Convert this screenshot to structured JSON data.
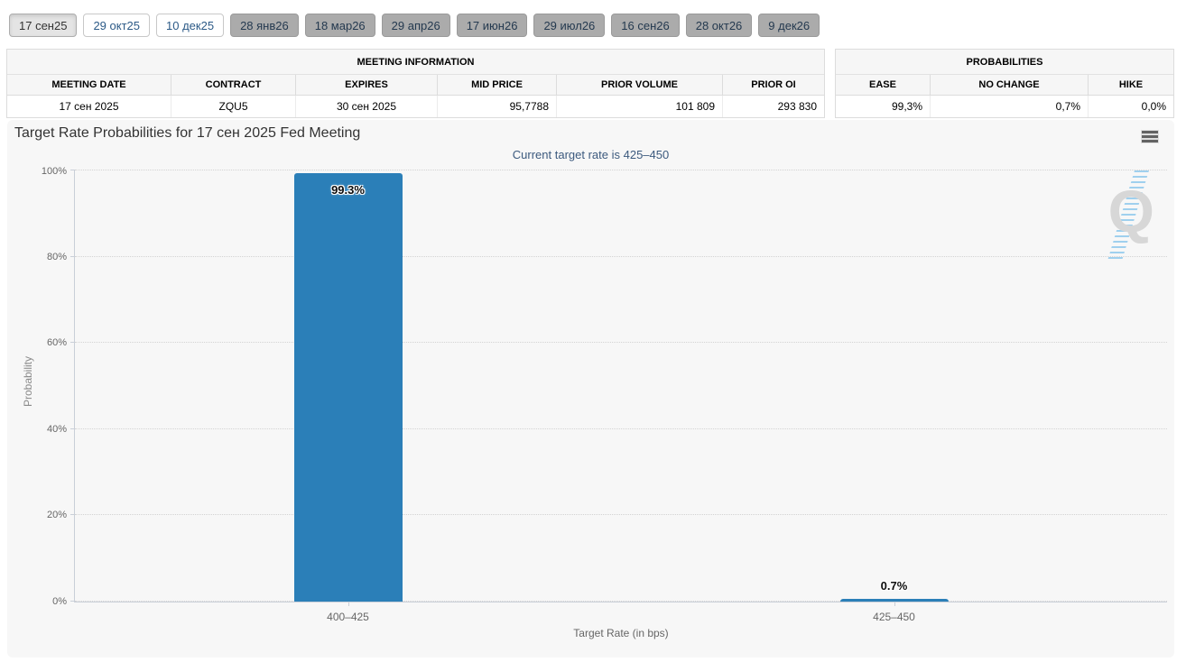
{
  "tabs": [
    {
      "label": "17 сен25",
      "state": "active"
    },
    {
      "label": "29 окт25",
      "state": "link"
    },
    {
      "label": "10 дек25",
      "state": "link"
    },
    {
      "label": "28 янв26",
      "state": "disabled"
    },
    {
      "label": "18 мар26",
      "state": "disabled"
    },
    {
      "label": "29 апр26",
      "state": "disabled"
    },
    {
      "label": "17 июн26",
      "state": "disabled"
    },
    {
      "label": "29 июл26",
      "state": "disabled"
    },
    {
      "label": "16 сен26",
      "state": "disabled"
    },
    {
      "label": "28 окт26",
      "state": "disabled"
    },
    {
      "label": "9 дек26",
      "state": "disabled"
    }
  ],
  "meeting_info": {
    "title": "MEETING INFORMATION",
    "columns": [
      "MEETING DATE",
      "CONTRACT",
      "EXPIRES",
      "MID PRICE",
      "PRIOR VOLUME",
      "PRIOR OI"
    ],
    "row": [
      "17 сен 2025",
      "ZQU5",
      "30 сен 2025",
      "95,7788",
      "101 809",
      "293 830"
    ]
  },
  "probabilities": {
    "title": "PROBABILITIES",
    "columns": [
      "EASE",
      "NO CHANGE",
      "HIKE"
    ],
    "row": [
      "99,3%",
      "0,7%",
      "0,0%"
    ]
  },
  "icons": {
    "chart_menu": "hamburger-icon",
    "watermark_letter": "Q"
  },
  "chart_data": {
    "type": "bar",
    "title": "Target Rate Probabilities for 17 сен 2025 Fed Meeting",
    "subtitle": "Current target rate is 425–450",
    "categories": [
      "400–425",
      "425–450"
    ],
    "values": [
      99.3,
      0.7
    ],
    "value_labels": [
      "99.3%",
      "0.7%"
    ],
    "xlabel": "Target Rate (in bps)",
    "ylabel": "Probability",
    "ylim": [
      0,
      100
    ],
    "yticks": [
      "0%",
      "20%",
      "40%",
      "60%",
      "80%",
      "100%"
    ],
    "bar_color": "#2b7fb8",
    "grid": "dotted horizontal",
    "legend": "none"
  }
}
